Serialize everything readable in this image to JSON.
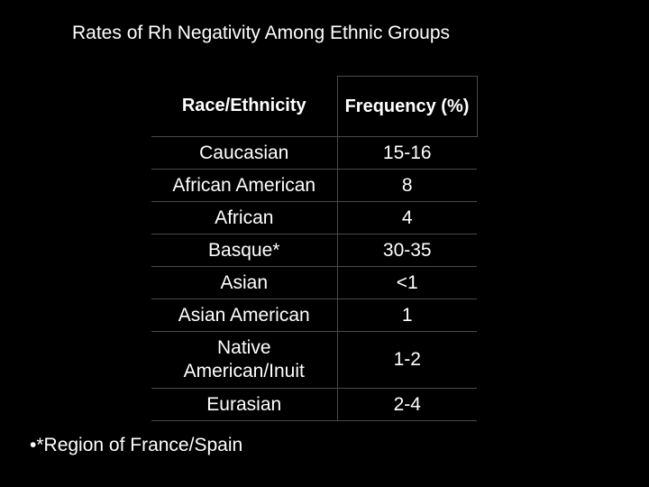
{
  "slide": {
    "title": "Rates of Rh Negativity Among Ethnic Groups",
    "footnote": "•*Region of France/Spain"
  },
  "table": {
    "headers": [
      "Race/Ethnicity",
      "Frequency (%)"
    ],
    "rows": [
      {
        "group": "Caucasian",
        "frequency": "15-16"
      },
      {
        "group": "African American",
        "frequency": "8"
      },
      {
        "group": "African",
        "frequency": "4"
      },
      {
        "group": "Basque*",
        "frequency": "30-35"
      },
      {
        "group": "Asian",
        "frequency": "<1"
      },
      {
        "group": "Asian American",
        "frequency": "1"
      },
      {
        "group": "Native American/Inuit",
        "frequency": "1-2"
      },
      {
        "group": "Eurasian",
        "frequency": "2-4"
      }
    ]
  },
  "colors": {
    "background": "#000000",
    "text": "#ffffff",
    "grid": "#4a4a4a"
  }
}
